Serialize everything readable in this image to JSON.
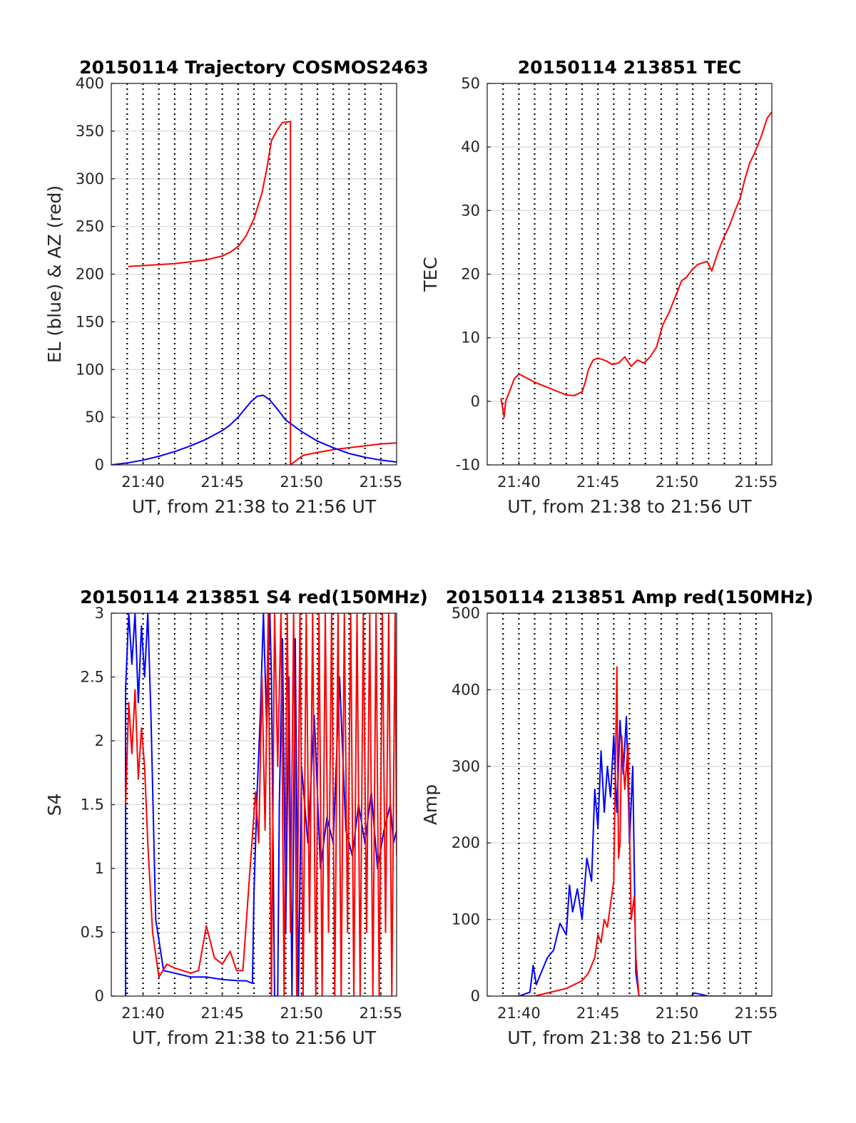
{
  "chart_data": [
    {
      "type": "line",
      "title": "20150114 Trajectory COSMOS2463",
      "xlabel": "UT, from 21:38 to 21:56 UT",
      "ylabel": "EL (blue) & AZ (red)",
      "xlim": [
        21.6333,
        21.9333
      ],
      "ylim": [
        0,
        400
      ],
      "xticks": [
        {
          "v": 21.6667,
          "label": "21:40"
        },
        {
          "v": 21.75,
          "label": "21:45"
        },
        {
          "v": 21.8333,
          "label": "21:50"
        },
        {
          "v": 21.9167,
          "label": "21:55"
        }
      ],
      "yticks": [
        0,
        50,
        100,
        150,
        200,
        250,
        300,
        350,
        400
      ],
      "grid": true,
      "series": [
        {
          "color": "#ff0000",
          "x": [
            21.6511,
            21.6667,
            21.6833,
            21.7,
            21.7167,
            21.7333,
            21.75,
            21.7583,
            21.7667,
            21.775,
            21.7833,
            21.7917,
            21.7967,
            21.8017,
            21.8083,
            21.8133,
            21.8217,
            21.8217,
            21.8283,
            21.835,
            21.85,
            21.8667,
            21.8833,
            21.9,
            21.9167,
            21.9333
          ],
          "y": [
            208,
            209,
            210,
            211,
            213,
            215,
            219,
            223,
            229,
            240,
            258,
            285,
            310,
            340,
            352,
            359,
            360,
            0,
            5,
            10,
            13,
            16,
            18,
            20,
            22,
            23
          ]
        },
        {
          "color": "#0000ff",
          "x": [
            21.6333,
            21.65,
            21.6667,
            21.6833,
            21.7,
            21.7167,
            21.7333,
            21.75,
            21.7583,
            21.7667,
            21.7733,
            21.78,
            21.7867,
            21.7933,
            21.8,
            21.8083,
            21.8167,
            21.8333,
            21.85,
            21.8667,
            21.8833,
            21.9,
            21.9167,
            21.9333
          ],
          "y": [
            0,
            2,
            5,
            9,
            14,
            20,
            27,
            36,
            42,
            50,
            58,
            66,
            72,
            73,
            68,
            58,
            47,
            35,
            25,
            18,
            12,
            8,
            5,
            3
          ]
        }
      ]
    },
    {
      "type": "line",
      "title": "20150114 213851 TEC",
      "xlabel": "UT, from 21:38 to 21:56 UT",
      "ylabel": "TEC",
      "xlim": [
        21.6333,
        21.9333
      ],
      "ylim": [
        -10,
        50
      ],
      "xticks": [
        {
          "v": 21.6667,
          "label": "21:40"
        },
        {
          "v": 21.75,
          "label": "21:45"
        },
        {
          "v": 21.8333,
          "label": "21:50"
        },
        {
          "v": 21.9167,
          "label": "21:55"
        }
      ],
      "yticks": [
        -10,
        0,
        10,
        20,
        30,
        40,
        50
      ],
      "grid": true,
      "series": [
        {
          "color": "#ff0000",
          "x": [
            21.6478,
            21.6511,
            21.6528,
            21.6567,
            21.6617,
            21.6667,
            21.6733,
            21.6833,
            21.7,
            21.7167,
            21.725,
            21.7333,
            21.7367,
            21.74,
            21.745,
            21.75,
            21.7583,
            21.765,
            21.7717,
            21.7783,
            21.785,
            21.7917,
            21.7983,
            21.805,
            21.8117,
            21.8183,
            21.825,
            21.8317,
            21.8383,
            21.8433,
            21.8483,
            21.855,
            21.865,
            21.87,
            21.8767,
            21.8833,
            21.8883,
            21.8933,
            21.9,
            21.905,
            21.91,
            21.915,
            21.9217,
            21.9283,
            21.9333
          ],
          "y": [
            0.5,
            -2.5,
            0,
            1.5,
            3.5,
            4.3,
            3.8,
            3,
            2,
            1,
            0.9,
            1.5,
            3,
            5,
            6.5,
            6.8,
            6.4,
            5.8,
            6,
            7,
            5.5,
            6.5,
            6,
            7,
            8.5,
            12,
            14,
            16.5,
            19,
            19.5,
            20.5,
            21.5,
            22,
            20.5,
            23.5,
            26,
            27.5,
            29.5,
            32,
            35,
            37.5,
            39,
            41.5,
            44.5,
            45.5
          ]
        }
      ]
    },
    {
      "type": "line",
      "title": "20150114 213851 S4 red(150MHz)",
      "xlabel": "UT, from 21:38 to 21:56 UT",
      "ylabel": "S4",
      "xlim": [
        21.6333,
        21.9333
      ],
      "ylim": [
        0,
        3
      ],
      "xticks": [
        {
          "v": 21.6667,
          "label": "21:40"
        },
        {
          "v": 21.75,
          "label": "21:45"
        },
        {
          "v": 21.8333,
          "label": "21:50"
        },
        {
          "v": 21.9167,
          "label": "21:55"
        }
      ],
      "yticks": [
        0,
        0.5,
        1,
        1.5,
        2,
        2.5,
        3
      ],
      "grid": true,
      "series": [
        {
          "color": "#0000ff",
          "x": [
            21.6483,
            21.6483,
            21.6517,
            21.655,
            21.6583,
            21.6617,
            21.665,
            21.6683,
            21.6717,
            21.675,
            21.68,
            21.6883,
            21.7,
            21.7167,
            21.7333,
            21.75,
            21.7667,
            21.775,
            21.7817,
            21.7833,
            21.7867,
            21.79,
            21.7933,
            21.7967,
            21.8,
            21.8017,
            21.805,
            21.8083,
            21.81,
            21.8133,
            21.8167,
            21.82,
            21.8233,
            21.8267,
            21.83,
            21.8333,
            21.84,
            21.8467,
            21.8533,
            21.86,
            21.8667,
            21.8733,
            21.88,
            21.8867,
            21.8933,
            21.9,
            21.9067,
            21.9133,
            21.92,
            21.9267,
            21.93,
            21.9333
          ],
          "y": [
            0,
            2.4,
            3,
            2.6,
            3,
            2.3,
            2.9,
            2.5,
            3,
            2.2,
            0.6,
            0.2,
            0.18,
            0.15,
            0.15,
            0.13,
            0.12,
            0.12,
            0.1,
            0.8,
            1.6,
            2.2,
            3,
            2.1,
            3,
            2.5,
            0,
            0,
            1.5,
            2.8,
            0.5,
            2.5,
            0,
            2.8,
            0,
            1.8,
            1.2,
            2.2,
            1,
            1.4,
            1.2,
            2.5,
            1.3,
            1.1,
            1.5,
            1.2,
            1.6,
            1,
            1.3,
            1.5,
            1.2,
            1.3
          ]
        },
        {
          "color": "#ff0000",
          "x": [
            21.6483,
            21.6517,
            21.655,
            21.6583,
            21.6617,
            21.665,
            21.6683,
            21.6717,
            21.6767,
            21.6833,
            21.6917,
            21.7,
            21.7083,
            21.7167,
            21.725,
            21.7333,
            21.7417,
            21.75,
            21.7583,
            21.765,
            21.7717,
            21.7783,
            21.785,
            21.7883,
            21.7917,
            21.795,
            21.7983,
            21.8017,
            21.805,
            21.8083,
            21.8117,
            21.815,
            21.8183,
            21.8217,
            21.825,
            21.8283,
            21.8317,
            21.835,
            21.8383,
            21.8417,
            21.845,
            21.8483,
            21.8517,
            21.855,
            21.8583,
            21.8617,
            21.865,
            21.8683,
            21.8717,
            21.875,
            21.8783,
            21.8817,
            21.885,
            21.8883,
            21.8917,
            21.895,
            21.8983,
            21.9017,
            21.905,
            21.9083,
            21.9117,
            21.915,
            21.9183,
            21.9217,
            21.925,
            21.9283,
            21.9317,
            21.9333
          ],
          "y": [
            1.5,
            2.3,
            1.9,
            2.4,
            1.7,
            2.1,
            1.8,
            1.2,
            0.5,
            0.15,
            0.25,
            0.22,
            0.2,
            0.18,
            0.2,
            0.55,
            0.3,
            0.25,
            0.35,
            0.2,
            0.2,
            0.9,
            1.6,
            1.2,
            2.5,
            1.3,
            3,
            0,
            3,
            1.8,
            3,
            0,
            3,
            0.5,
            3,
            0,
            3,
            0,
            3,
            0.5,
            3,
            0,
            3,
            0,
            3,
            0.5,
            3,
            0,
            3,
            0,
            3,
            0.5,
            3,
            0,
            3,
            0,
            3,
            0.5,
            3,
            0,
            3,
            0,
            3,
            0.5,
            3,
            0,
            3,
            1.1
          ]
        }
      ]
    },
    {
      "type": "line",
      "title": "20150114 213851 Amp red(150MHz)",
      "xlabel": "UT, from 21:38 to 21:56 UT",
      "ylabel": "Amp",
      "xlim": [
        21.6333,
        21.9333
      ],
      "ylim": [
        0,
        500
      ],
      "xticks": [
        {
          "v": 21.6667,
          "label": "21:40"
        },
        {
          "v": 21.75,
          "label": "21:45"
        },
        {
          "v": 21.8333,
          "label": "21:50"
        },
        {
          "v": 21.9167,
          "label": "21:55"
        }
      ],
      "yticks": [
        0,
        100,
        200,
        300,
        400,
        500
      ],
      "grid": true,
      "series": [
        {
          "color": "#0000ff",
          "x": [
            21.6483,
            21.6667,
            21.6783,
            21.6817,
            21.685,
            21.69,
            21.6967,
            21.7033,
            21.71,
            21.7167,
            21.72,
            21.7233,
            21.7283,
            21.7333,
            21.7383,
            21.7433,
            21.7467,
            21.75,
            21.7533,
            21.7567,
            21.76,
            21.7633,
            21.7667,
            21.77,
            21.7733,
            21.7767,
            21.78,
            21.7833,
            21.7867,
            21.79,
            21.7933,
            21.7967,
            21.8,
            21.8167,
            21.8333,
            21.8483,
            21.8517,
            21.8667,
            21.9,
            21.9333
          ],
          "y": [
            0,
            0,
            5,
            40,
            15,
            30,
            50,
            60,
            95,
            80,
            145,
            110,
            140,
            100,
            180,
            150,
            270,
            220,
            320,
            240,
            300,
            260,
            340,
            240,
            360,
            290,
            365,
            200,
            300,
            30,
            0,
            0,
            0,
            0,
            0,
            0,
            4,
            0,
            0,
            0
          ]
        },
        {
          "color": "#ff0000",
          "x": [
            21.6483,
            21.6833,
            21.7,
            21.7167,
            21.7333,
            21.74,
            21.7467,
            21.75,
            21.7533,
            21.7567,
            21.76,
            21.7633,
            21.7667,
            21.77,
            21.7717,
            21.7733,
            21.775,
            21.7783,
            21.7817,
            21.785,
            21.7883,
            21.79,
            21.7933,
            21.8,
            21.8333,
            21.9333
          ],
          "y": [
            0,
            0,
            5,
            10,
            20,
            30,
            50,
            80,
            70,
            100,
            90,
            120,
            150,
            430,
            180,
            200,
            340,
            270,
            330,
            100,
            130,
            50,
            0,
            0,
            0,
            0
          ]
        }
      ]
    }
  ]
}
